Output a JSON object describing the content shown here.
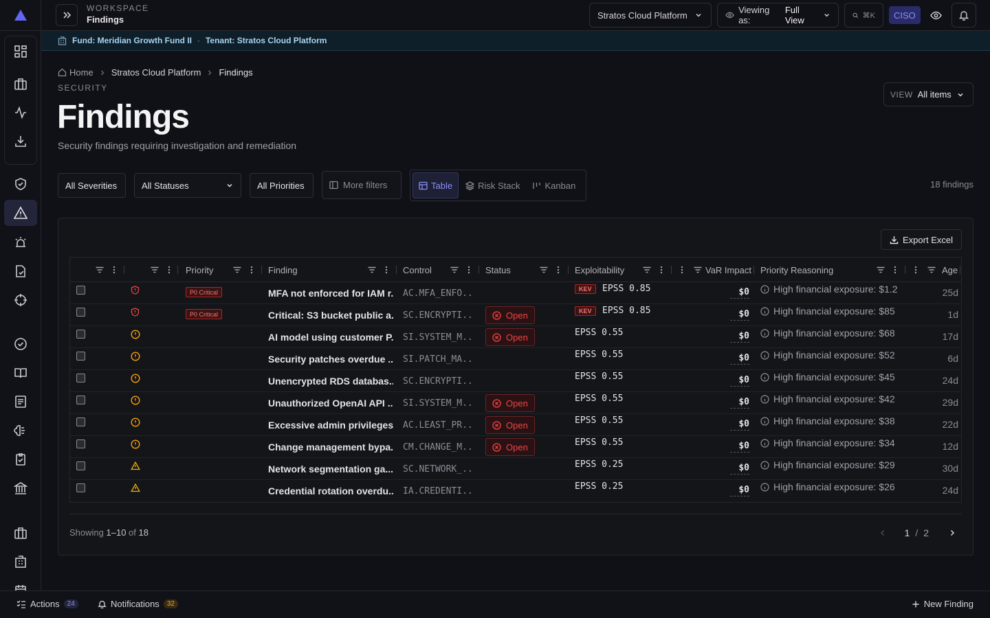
{
  "topbar": {
    "workspace_label": "WORKSPACE",
    "workspace_title": "Findings",
    "tenant_select": "Stratos Cloud Platform",
    "viewing_prefix": "Viewing as:",
    "viewing_value": "Full View",
    "search_shortcut": "⌘K",
    "role_badge": "CISO"
  },
  "fund_banner": {
    "fund": "Fund: Meridian Growth Fund II",
    "separator": "·",
    "tenant": "Tenant: Stratos Cloud Platform"
  },
  "breadcrumb": {
    "home": "Home",
    "tenant": "Stratos Cloud Platform",
    "current": "Findings"
  },
  "header": {
    "section": "SECURITY",
    "title": "Findings",
    "subtitle": "Security findings requiring investigation and remediation",
    "view_label": "VIEW",
    "view_value": "All items"
  },
  "filters": {
    "severity": "All Severities",
    "status": "All Statuses",
    "priority": "All Priorities",
    "more": "More filters",
    "count": "18 findings"
  },
  "view_tabs": {
    "table": "Table",
    "risk_stack": "Risk Stack",
    "kanban": "Kanban"
  },
  "table": {
    "export_label": "Export Excel",
    "columns": {
      "priority": "Priority",
      "finding": "Finding",
      "control": "Control",
      "status": "Status",
      "exploitability": "Exploitability",
      "var_impact": "VaR Impact",
      "priority_reasoning": "Priority Reasoning",
      "age": "Age"
    },
    "rows": [
      {
        "severity": "critical",
        "priority": "P0 Critical",
        "finding": "MFA not enforced for IAM r...",
        "control": "AC.MFA_ENFO...",
        "status": "",
        "kev": "KEV",
        "epss": "EPSS 0.85",
        "var": "$0",
        "reasoning": "High financial exposure: $1.2",
        "age": "25d"
      },
      {
        "severity": "critical",
        "priority": "P0 Critical",
        "finding": "Critical: S3 bucket public a...",
        "control": "SC.ENCRYPTI...",
        "status": "Open",
        "kev": "KEV",
        "epss": "EPSS 0.85",
        "var": "$0",
        "reasoning": "High financial exposure: $85",
        "age": "1d"
      },
      {
        "severity": "high",
        "priority": "",
        "finding": "AI model using customer P...",
        "control": "SI.SYSTEM_M...",
        "status": "Open",
        "kev": "",
        "epss": "EPSS 0.55",
        "var": "$0",
        "reasoning": "High financial exposure: $68",
        "age": "17d"
      },
      {
        "severity": "high",
        "priority": "",
        "finding": "Security patches overdue ...",
        "control": "SI.PATCH_MA...",
        "status": "",
        "kev": "",
        "epss": "EPSS 0.55",
        "var": "$0",
        "reasoning": "High financial exposure: $52",
        "age": "6d"
      },
      {
        "severity": "high",
        "priority": "",
        "finding": "Unencrypted RDS databas...",
        "control": "SC.ENCRYPTI...",
        "status": "",
        "kev": "",
        "epss": "EPSS 0.55",
        "var": "$0",
        "reasoning": "High financial exposure: $45",
        "age": "24d"
      },
      {
        "severity": "high",
        "priority": "",
        "finding": "Unauthorized OpenAI API ...",
        "control": "SI.SYSTEM_M...",
        "status": "Open",
        "kev": "",
        "epss": "EPSS 0.55",
        "var": "$0",
        "reasoning": "High financial exposure: $42",
        "age": "29d"
      },
      {
        "severity": "high",
        "priority": "",
        "finding": "Excessive admin privileges...",
        "control": "AC.LEAST_PR...",
        "status": "Open",
        "kev": "",
        "epss": "EPSS 0.55",
        "var": "$0",
        "reasoning": "High financial exposure: $38",
        "age": "22d"
      },
      {
        "severity": "high",
        "priority": "",
        "finding": "Change management bypa...",
        "control": "CM.CHANGE_M...",
        "status": "Open",
        "kev": "",
        "epss": "EPSS 0.55",
        "var": "$0",
        "reasoning": "High financial exposure: $34",
        "age": "12d"
      },
      {
        "severity": "medium",
        "priority": "",
        "finding": "Network segmentation ga...",
        "control": "SC.NETWORK_...",
        "status": "",
        "kev": "",
        "epss": "EPSS 0.25",
        "var": "$0",
        "reasoning": "High financial exposure: $29",
        "age": "30d"
      },
      {
        "severity": "medium",
        "priority": "",
        "finding": "Credential rotation overdu...",
        "control": "IA.CREDENTI...",
        "status": "",
        "kev": "",
        "epss": "EPSS 0.25",
        "var": "$0",
        "reasoning": "High financial exposure: $26",
        "age": "24d"
      }
    ]
  },
  "pagination": {
    "showing_prefix": "Showing",
    "range": "1–10",
    "of": "of",
    "total": "18",
    "current_page": "1",
    "separator": "/",
    "total_pages": "2"
  },
  "bottombar": {
    "actions_label": "Actions",
    "actions_count": "24",
    "notifications_label": "Notifications",
    "notifications_count": "32",
    "new_finding": "New Finding"
  },
  "colors": {
    "accent": "#6366f1",
    "critical": "#ef4444",
    "high": "#f59e0b",
    "medium": "#eab308"
  }
}
